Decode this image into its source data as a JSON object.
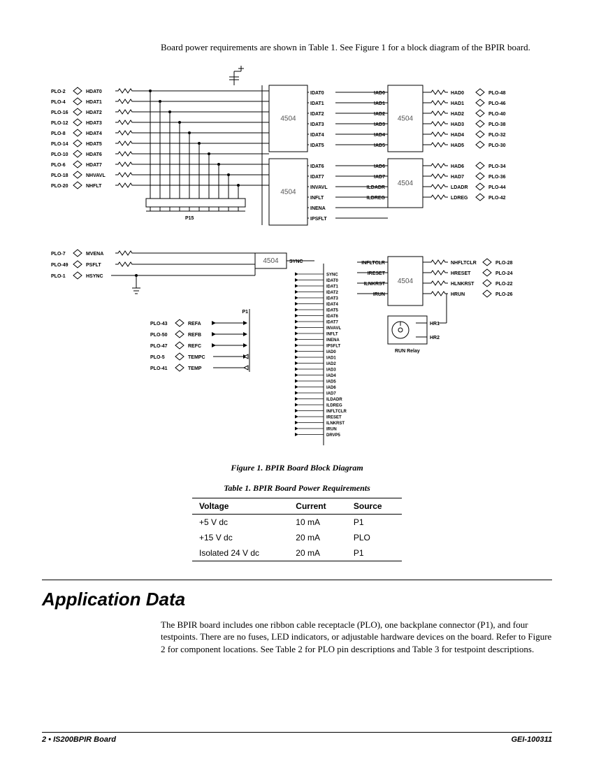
{
  "intro": "Board power requirements are shown in Table 1. See Figure 1 for a block diagram of the BPIR board.",
  "figure_caption": "Figure 1.  BPIR Board Block Diagram",
  "table_caption": "Table 1.  BPIR Board Power Requirements",
  "table": {
    "headers": [
      "Voltage",
      "Current",
      "Source"
    ],
    "rows": [
      [
        "+5 V dc",
        "10 mA",
        "P1"
      ],
      [
        "+15 V dc",
        "20 mA",
        "PLO"
      ],
      [
        "Isolated 24 V dc",
        "20 mA",
        "P1"
      ]
    ]
  },
  "section_title": "Application Data",
  "body": "The BPIR board includes one ribbon cable receptacle (PLO), one backplane connector (P1), and four testpoints. There are no fuses, LED indicators, or adjustable hardware devices on the board. Refer to Figure 2 for component locations. See Table 2 for PLO pin descriptions and Table 3 for testpoint descriptions.",
  "footer_left": "2  •  IS200BPIR Board",
  "footer_right": "GEI-100311",
  "diagram": {
    "chip_label": "4504",
    "p1_label": "P1",
    "p15_label": "P15",
    "run_relay": "RUN Relay",
    "left_inputs": [
      {
        "plo": "PLO-2",
        "sig": "HDAT0"
      },
      {
        "plo": "PLO-4",
        "sig": "HDAT1"
      },
      {
        "plo": "PLO-16",
        "sig": "HDAT2"
      },
      {
        "plo": "PLO-12",
        "sig": "HDAT3"
      },
      {
        "plo": "PLO-8",
        "sig": "HDAT4"
      },
      {
        "plo": "PLO-14",
        "sig": "HDAT5"
      },
      {
        "plo": "PLO-10",
        "sig": "HDAT6"
      },
      {
        "plo": "PLO-6",
        "sig": "HDAT7"
      },
      {
        "plo": "PLO-18",
        "sig": "NHVAVL"
      },
      {
        "plo": "PLO-20",
        "sig": "NHFLT"
      }
    ],
    "left_inputs2": [
      {
        "plo": "PLO-7",
        "sig": "MVENA"
      },
      {
        "plo": "PLO-49",
        "sig": "PSFLT"
      },
      {
        "plo": "PLO-1",
        "sig": "HSYNC"
      }
    ],
    "left_outputs": [
      {
        "plo": "PLO-43",
        "sig": "REFA"
      },
      {
        "plo": "PLO-50",
        "sig": "REFB"
      },
      {
        "plo": "PLO-47",
        "sig": "REFC"
      },
      {
        "plo": "PLO-5",
        "sig": "TEMPC"
      },
      {
        "plo": "PLO-41",
        "sig": "TEMP"
      }
    ],
    "chip1_out": [
      "IDAT0",
      "IDAT1",
      "IDAT2",
      "IDAT3",
      "IDAT4",
      "IDAT5"
    ],
    "chip2_out": [
      "IDAT6",
      "IDAT7",
      "INVAVL",
      "INFLT",
      "INENA",
      "IPSFLT"
    ],
    "chip3_out": [
      "SYNC"
    ],
    "mid_right_top": [
      "IAD0",
      "IAD1",
      "IAD2",
      "IAD3",
      "IAD4",
      "IAD5"
    ],
    "mid_right_bot": [
      "IAD6",
      "IAD7",
      "ILDADR",
      "ILDREG"
    ],
    "right_outputs_top": [
      {
        "sig": "HAD0",
        "plo": "PLO-48"
      },
      {
        "sig": "HAD1",
        "plo": "PLO-46"
      },
      {
        "sig": "HAD2",
        "plo": "PLO-40"
      },
      {
        "sig": "HAD3",
        "plo": "PLO-38"
      },
      {
        "sig": "HAD4",
        "plo": "PLO-32"
      },
      {
        "sig": "HAD5",
        "plo": "PLO-30"
      }
    ],
    "right_outputs_bot": [
      {
        "sig": "HAD6",
        "plo": "PLO-34"
      },
      {
        "sig": "HAD7",
        "plo": "PLO-36"
      },
      {
        "sig": "LDADR",
        "plo": "PLO-44"
      },
      {
        "sig": "LDREG",
        "plo": "PLO-42"
      }
    ],
    "chip6_in": [
      "INFLTCLR",
      "IRESET",
      "ILNKRST",
      "IRUN"
    ],
    "chip6_out": [
      {
        "sig": "NHFLTCLR",
        "plo": "PLO-28"
      },
      {
        "sig": "HRESET",
        "plo": "PLO-24"
      },
      {
        "sig": "HLNKRST",
        "plo": "PLO-22"
      },
      {
        "sig": "HRUN",
        "plo": "PLO-26"
      }
    ],
    "relay_pins": [
      "HR1",
      "HR2"
    ],
    "p1_signals": [
      "SYNC",
      "IDAT0",
      "IDAT1",
      "IDAT2",
      "IDAT3",
      "IDAT4",
      "IDAT5",
      "IDAT6",
      "IDAT7",
      "INVAVL",
      "INFLT",
      "INENA",
      "IPSFLT",
      "IAD0",
      "IAD1",
      "IAD2",
      "IAD3",
      "IAD4",
      "IAD5",
      "IAD6",
      "IAD7",
      "ILDADR",
      "ILDREG",
      "INFLTCLR",
      "IRESET",
      "ILNKRST",
      "IRUN",
      "DRVP5"
    ],
    "colors": {
      "stroke": "#000000",
      "chip_fill": "#ffffff"
    }
  }
}
